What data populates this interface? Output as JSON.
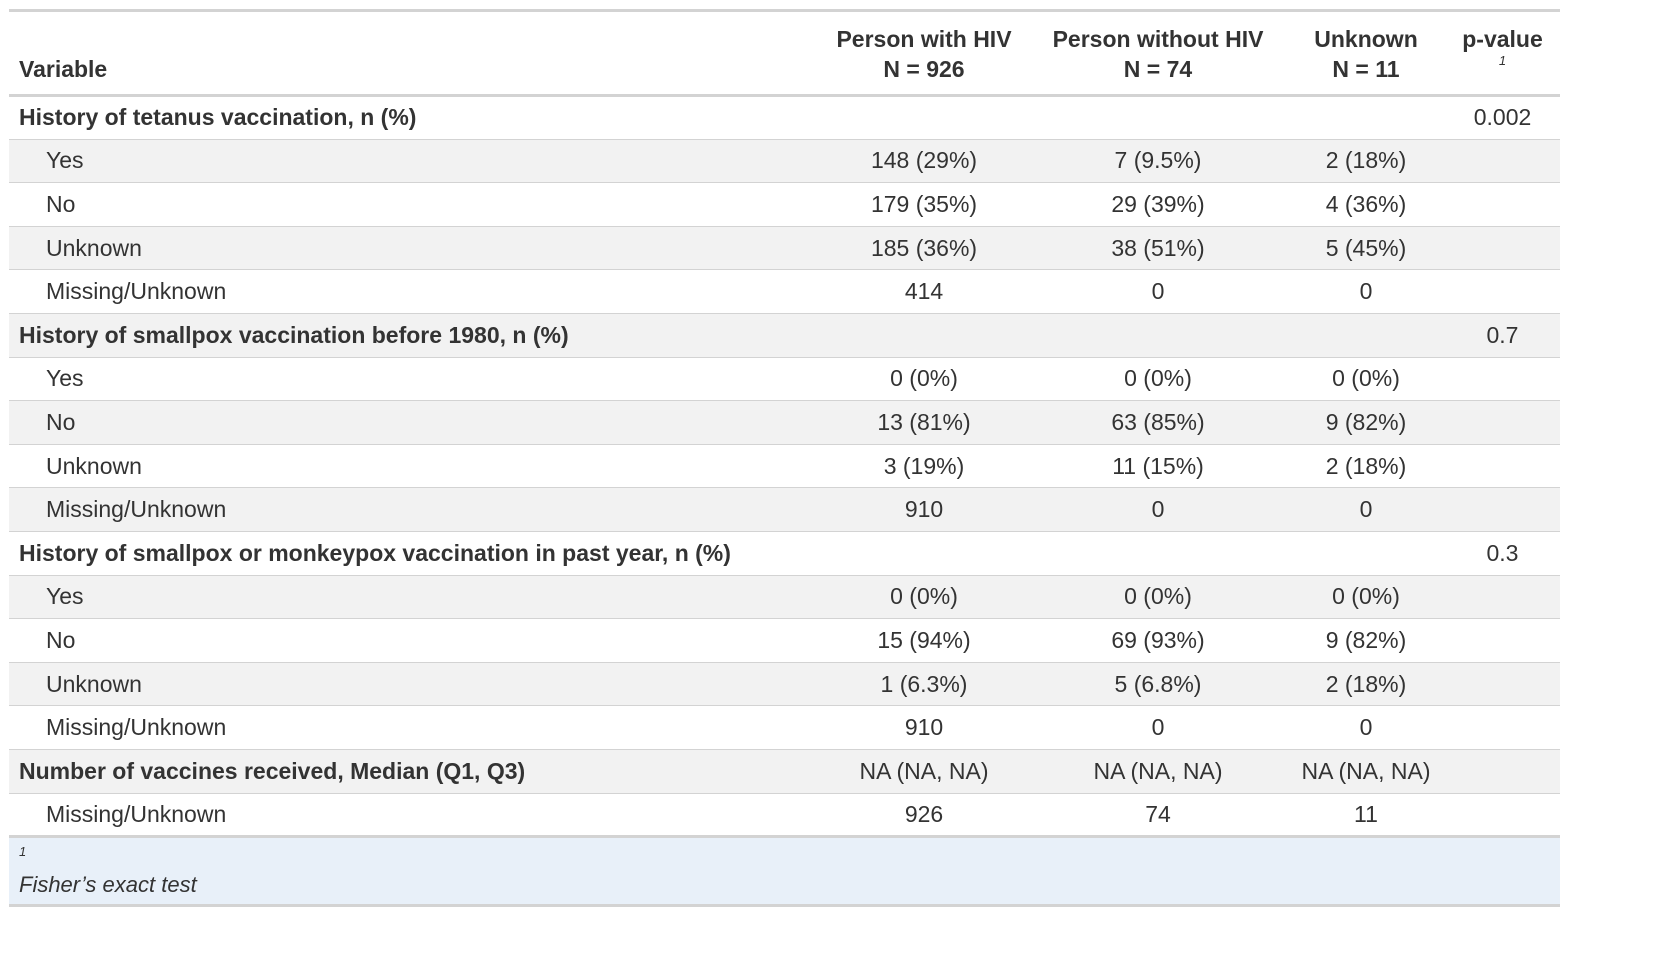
{
  "header": {
    "variable": "Variable",
    "col1": {
      "title": "Person with HIV",
      "n": "N = 926"
    },
    "col2": {
      "title": "Person without HIV",
      "n": "N = 74"
    },
    "col3": {
      "title": "Unknown",
      "n": "N = 11"
    },
    "pvalue": {
      "title": "p-value",
      "mark": "1"
    }
  },
  "rows": [
    {
      "label": "History of tetanus vaccination, n (%)",
      "c1": "",
      "c2": "",
      "c3": "",
      "p": "0.002"
    },
    {
      "label": "Yes",
      "c1": "148 (29%)",
      "c2": "7 (9.5%)",
      "c3": "2 (18%)",
      "p": ""
    },
    {
      "label": "No",
      "c1": "179 (35%)",
      "c2": "29 (39%)",
      "c3": "4 (36%)",
      "p": ""
    },
    {
      "label": "Unknown",
      "c1": "185 (36%)",
      "c2": "38 (51%)",
      "c3": "5 (45%)",
      "p": ""
    },
    {
      "label": "Missing/Unknown",
      "c1": "414",
      "c2": "0",
      "c3": "0",
      "p": ""
    },
    {
      "label": "History of smallpox vaccination before 1980, n (%)",
      "c1": "",
      "c2": "",
      "c3": "",
      "p": "0.7"
    },
    {
      "label": "Yes",
      "c1": "0 (0%)",
      "c2": "0 (0%)",
      "c3": "0 (0%)",
      "p": ""
    },
    {
      "label": "No",
      "c1": "13 (81%)",
      "c2": "63 (85%)",
      "c3": "9 (82%)",
      "p": ""
    },
    {
      "label": "Unknown",
      "c1": "3 (19%)",
      "c2": "11 (15%)",
      "c3": "2 (18%)",
      "p": ""
    },
    {
      "label": "Missing/Unknown",
      "c1": "910",
      "c2": "0",
      "c3": "0",
      "p": ""
    },
    {
      "label": "History of smallpox or monkeypox vaccination in past year, n (%)",
      "c1": "",
      "c2": "",
      "c3": "",
      "p": "0.3"
    },
    {
      "label": "Yes",
      "c1": "0 (0%)",
      "c2": "0 (0%)",
      "c3": "0 (0%)",
      "p": ""
    },
    {
      "label": "No",
      "c1": "15 (94%)",
      "c2": "69 (93%)",
      "c3": "9 (82%)",
      "p": ""
    },
    {
      "label": "Unknown",
      "c1": "1 (6.3%)",
      "c2": "5 (6.8%)",
      "c3": "2 (18%)",
      "p": ""
    },
    {
      "label": "Missing/Unknown",
      "c1": "910",
      "c2": "0",
      "c3": "0",
      "p": ""
    },
    {
      "label": "Number of vaccines received, Median (Q1, Q3)",
      "c1": "NA (NA, NA)",
      "c2": "NA (NA, NA)",
      "c3": "NA (NA, NA)",
      "p": ""
    },
    {
      "label": "Missing/Unknown",
      "c1": "926",
      "c2": "74",
      "c3": "11",
      "p": ""
    }
  ],
  "footnote": {
    "mark": "1",
    "text": "Fisher’s exact test"
  },
  "colors": {
    "header_rule": "#d3d3d3",
    "alt_row": "#f2f2f2",
    "footnote_bg": "#e8f0f9",
    "text": "#333333"
  }
}
